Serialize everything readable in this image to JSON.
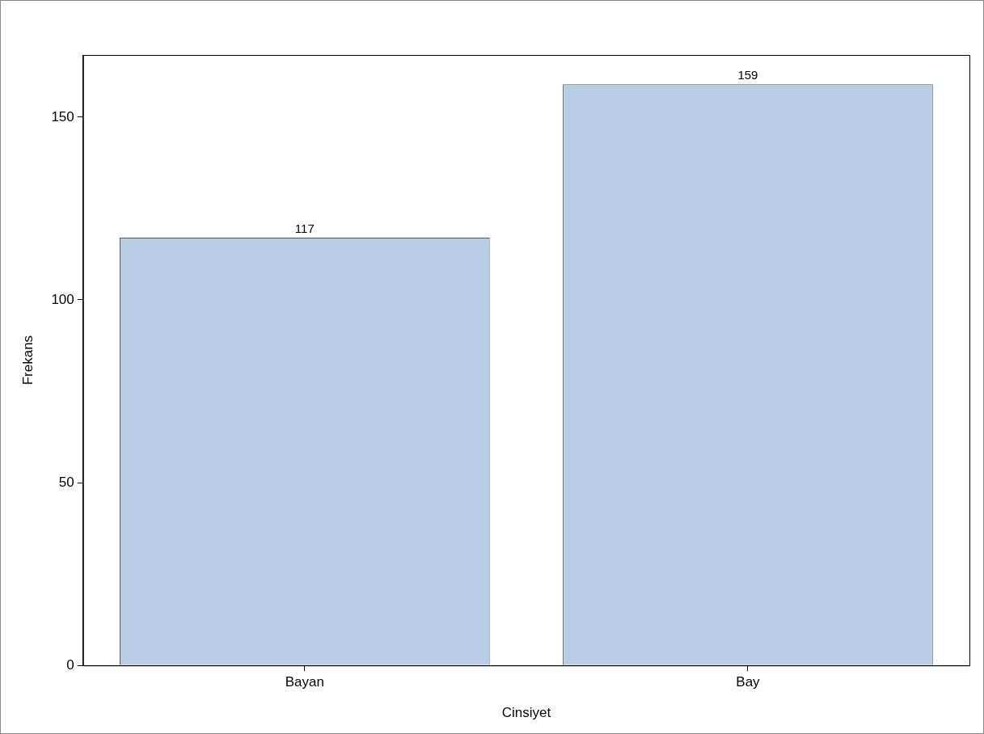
{
  "chart_data": {
    "type": "bar",
    "xlabel": "Cinsiyet",
    "ylabel": "Frekans",
    "categories": [
      "Bayan",
      "Bay"
    ],
    "values": [
      117,
      159
    ],
    "color": "#b8cde4",
    "ylim": [
      0,
      167
    ],
    "yticks": [
      0,
      50,
      100,
      150
    ],
    "grid": false,
    "legend": false,
    "data_labels": true
  }
}
